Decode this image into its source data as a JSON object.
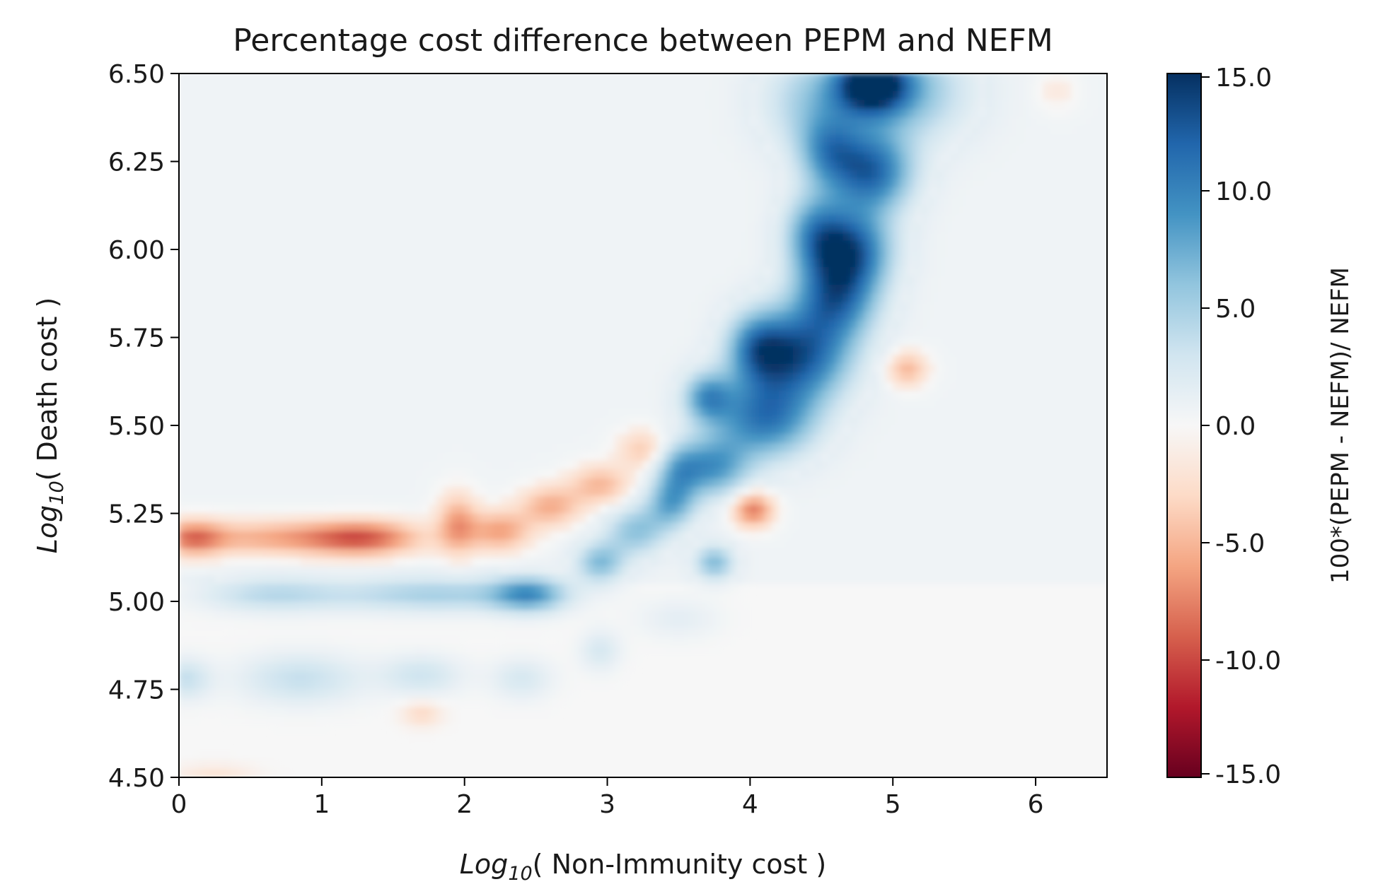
{
  "chart_data": {
    "type": "heatmap",
    "title": "Percentage cost difference between PEPM and NEFM",
    "xlabel": {
      "prefix": "Log",
      "subscript": "10",
      "suffix": "( Non-Immunity cost )"
    },
    "ylabel": {
      "prefix": "Log",
      "subscript": "10",
      "suffix": "( Death cost )"
    },
    "xlim": [
      0,
      6.5
    ],
    "ylim": [
      4.5,
      6.5
    ],
    "xticks": [
      0,
      1,
      2,
      3,
      4,
      5,
      6
    ],
    "xtick_labels": [
      "0",
      "1",
      "2",
      "3",
      "4",
      "5",
      "6"
    ],
    "yticks": [
      4.5,
      4.75,
      5.0,
      5.25,
      5.5,
      5.75,
      6.0,
      6.25,
      6.5
    ],
    "ytick_labels": [
      "4.50",
      "4.75",
      "5.00",
      "5.25",
      "5.50",
      "5.75",
      "6.00",
      "6.25",
      "6.50"
    ],
    "colorbar": {
      "label": "100*(PEPM - NEFM)/ NEFM",
      "range": [
        -15,
        15
      ],
      "ticks": [
        15,
        10,
        5,
        0,
        -5,
        -10,
        -15
      ],
      "tick_labels": [
        "15.0",
        "10.0",
        "5.0",
        "0.0",
        "-5.0",
        "-10.0",
        "-15.0"
      ],
      "colormap": "RdBu",
      "colors": [
        "#67001f",
        "#b2182b",
        "#d6604d",
        "#f4a582",
        "#fddbc7",
        "#f7f7f7",
        "#d1e5f0",
        "#92c5de",
        "#4393c3",
        "#2166ac",
        "#053061"
      ]
    },
    "background_value": 0.0,
    "features": [
      {
        "x": 4.85,
        "y": 6.47,
        "value": 14.5,
        "spread_x": 0.18,
        "spread_y": 0.06
      },
      {
        "x": 5.1,
        "y": 6.45,
        "value": 6.0,
        "spread_x": 0.3,
        "spread_y": 0.1
      },
      {
        "x": 4.45,
        "y": 6.42,
        "value": 5.0,
        "spread_x": 0.25,
        "spread_y": 0.1
      },
      {
        "x": 4.85,
        "y": 6.22,
        "value": 11.5,
        "spread_x": 0.2,
        "spread_y": 0.08
      },
      {
        "x": 4.55,
        "y": 6.28,
        "value": 7.0,
        "spread_x": 0.15,
        "spread_y": 0.07
      },
      {
        "x": 4.7,
        "y": 6.0,
        "value": 12.0,
        "spread_x": 0.2,
        "spread_y": 0.08
      },
      {
        "x": 4.45,
        "y": 6.05,
        "value": 7.0,
        "spread_x": 0.15,
        "spread_y": 0.08
      },
      {
        "x": 4.6,
        "y": 5.86,
        "value": 10.0,
        "spread_x": 0.2,
        "spread_y": 0.08
      },
      {
        "x": 4.35,
        "y": 5.7,
        "value": 12.0,
        "spread_x": 0.25,
        "spread_y": 0.09
      },
      {
        "x": 4.05,
        "y": 5.72,
        "value": 8.0,
        "spread_x": 0.15,
        "spread_y": 0.07
      },
      {
        "x": 4.1,
        "y": 5.52,
        "value": 10.5,
        "spread_x": 0.25,
        "spread_y": 0.08
      },
      {
        "x": 3.7,
        "y": 5.58,
        "value": 8.0,
        "spread_x": 0.12,
        "spread_y": 0.05
      },
      {
        "x": 3.75,
        "y": 5.38,
        "value": 8.0,
        "spread_x": 0.17,
        "spread_y": 0.06
      },
      {
        "x": 3.5,
        "y": 5.38,
        "value": 6.0,
        "spread_x": 0.12,
        "spread_y": 0.05
      },
      {
        "x": 3.45,
        "y": 5.28,
        "value": 7.5,
        "spread_x": 0.12,
        "spread_y": 0.05
      },
      {
        "x": 3.2,
        "y": 5.2,
        "value": 6.0,
        "spread_x": 0.15,
        "spread_y": 0.05
      },
      {
        "x": 2.95,
        "y": 5.11,
        "value": 6.5,
        "spread_x": 0.12,
        "spread_y": 0.04
      },
      {
        "x": 3.75,
        "y": 5.11,
        "value": 6.5,
        "spread_x": 0.1,
        "spread_y": 0.035
      },
      {
        "x": 2.45,
        "y": 5.02,
        "value": 8.0,
        "spread_x": 0.18,
        "spread_y": 0.035
      },
      {
        "x": 1.8,
        "y": 5.02,
        "value": 5.0,
        "spread_x": 0.5,
        "spread_y": 0.035
      },
      {
        "x": 0.65,
        "y": 5.02,
        "value": 4.0,
        "spread_x": 0.35,
        "spread_y": 0.035
      },
      {
        "x": 0.05,
        "y": 4.78,
        "value": 3.5,
        "spread_x": 0.12,
        "spread_y": 0.04
      },
      {
        "x": 0.85,
        "y": 4.78,
        "value": 3.5,
        "spread_x": 0.3,
        "spread_y": 0.05
      },
      {
        "x": 1.7,
        "y": 4.79,
        "value": 3.0,
        "spread_x": 0.2,
        "spread_y": 0.04
      },
      {
        "x": 2.4,
        "y": 4.78,
        "value": 2.5,
        "spread_x": 0.15,
        "spread_y": 0.04
      },
      {
        "x": 2.95,
        "y": 4.86,
        "value": 2.5,
        "spread_x": 0.1,
        "spread_y": 0.04
      },
      {
        "x": 3.5,
        "y": 4.95,
        "value": 1.5,
        "spread_x": 0.2,
        "spread_y": 0.04
      },
      {
        "x": 0.8,
        "y": 5.18,
        "value": -6.0,
        "spread_x": 0.55,
        "spread_y": 0.035
      },
      {
        "x": 0.1,
        "y": 5.18,
        "value": -6.5,
        "spread_x": 0.15,
        "spread_y": 0.035
      },
      {
        "x": 1.3,
        "y": 5.18,
        "value": -6.0,
        "spread_x": 0.25,
        "spread_y": 0.035
      },
      {
        "x": 1.95,
        "y": 5.22,
        "value": -6.0,
        "spread_x": 0.1,
        "spread_y": 0.06
      },
      {
        "x": 2.25,
        "y": 5.2,
        "value": -6.0,
        "spread_x": 0.15,
        "spread_y": 0.04
      },
      {
        "x": 2.6,
        "y": 5.27,
        "value": -5.5,
        "spread_x": 0.15,
        "spread_y": 0.04
      },
      {
        "x": 2.95,
        "y": 5.33,
        "value": -5.0,
        "spread_x": 0.15,
        "spread_y": 0.04
      },
      {
        "x": 3.25,
        "y": 5.43,
        "value": -4.0,
        "spread_x": 0.12,
        "spread_y": 0.04
      },
      {
        "x": 4.02,
        "y": 5.26,
        "value": -8.0,
        "spread_x": 0.1,
        "spread_y": 0.035
      },
      {
        "x": 5.1,
        "y": 5.66,
        "value": -5.0,
        "spread_x": 0.1,
        "spread_y": 0.035
      },
      {
        "x": 1.7,
        "y": 4.68,
        "value": -3.0,
        "spread_x": 0.1,
        "spread_y": 0.025
      },
      {
        "x": 0.25,
        "y": 4.51,
        "value": -2.0,
        "spread_x": 0.2,
        "spread_y": 0.02
      },
      {
        "x": 6.15,
        "y": 6.45,
        "value": -1.5,
        "spread_x": 0.1,
        "spread_y": 0.04
      }
    ]
  }
}
